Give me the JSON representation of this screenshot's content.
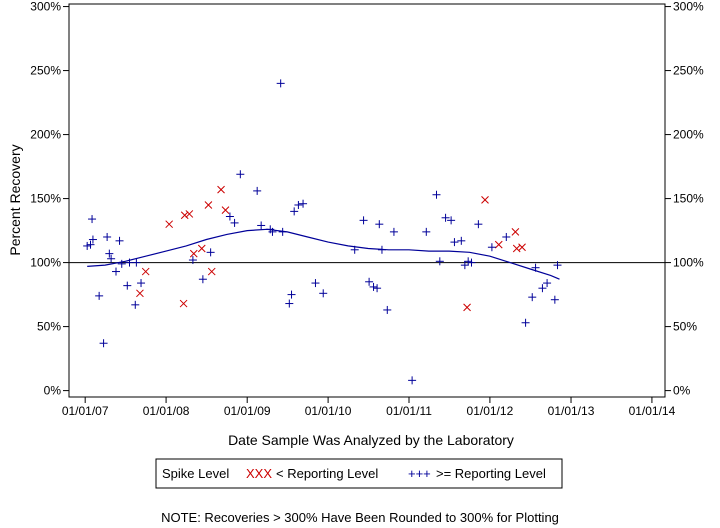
{
  "chart_data": {
    "type": "scatter",
    "xlabel": "Date Sample Was Analyzed by the Laboratory",
    "ylabel": "Percent Recovery",
    "x_ticks": [
      "01/01/07",
      "01/01/08",
      "01/01/09",
      "01/01/10",
      "01/01/11",
      "01/01/12",
      "01/01/13",
      "01/01/14"
    ],
    "x_range": [
      "2006-10-20",
      "2014-03-01"
    ],
    "y_ticks": [
      "0%",
      "50%",
      "100%",
      "150%",
      "200%",
      "250%",
      "300%"
    ],
    "ylim": [
      -5,
      302
    ],
    "reference_line_y": 100,
    "legend": {
      "title": "Spike Level",
      "entries": [
        {
          "symbol": "XXX",
          "label": "< Reporting Level",
          "color": "#cc0000"
        },
        {
          "symbol": "+++",
          "label": ">= Reporting Level",
          "color": "#000099"
        }
      ]
    },
    "note": "NOTE: Recoveries > 300% Have Been Rounded to 300% for Plotting",
    "series": [
      {
        "name": "< Reporting Level",
        "marker": "x",
        "color": "#cc0000",
        "points": [
          {
            "x": "2007-09-05",
            "y": 76
          },
          {
            "x": "2007-10-01",
            "y": 93
          },
          {
            "x": "2008-01-15",
            "y": 130
          },
          {
            "x": "2008-03-20",
            "y": 68
          },
          {
            "x": "2008-03-25",
            "y": 137
          },
          {
            "x": "2008-04-15",
            "y": 138
          },
          {
            "x": "2008-05-05",
            "y": 107
          },
          {
            "x": "2008-06-10",
            "y": 111
          },
          {
            "x": "2008-07-10",
            "y": 145
          },
          {
            "x": "2008-07-25",
            "y": 93
          },
          {
            "x": "2008-09-05",
            "y": 157
          },
          {
            "x": "2008-09-25",
            "y": 141
          },
          {
            "x": "2011-09-20",
            "y": 65
          },
          {
            "x": "2011-12-10",
            "y": 149
          },
          {
            "x": "2012-02-10",
            "y": 114
          },
          {
            "x": "2012-04-25",
            "y": 124
          },
          {
            "x": "2012-05-01",
            "y": 111
          },
          {
            "x": "2012-05-25",
            "y": 112
          }
        ]
      },
      {
        "name": ">= Reporting Level",
        "marker": "plus",
        "color": "#000099",
        "points": [
          {
            "x": "2007-01-10",
            "y": 113
          },
          {
            "x": "2007-01-25",
            "y": 114
          },
          {
            "x": "2007-02-01",
            "y": 134
          },
          {
            "x": "2007-02-05",
            "y": 118
          },
          {
            "x": "2007-03-05",
            "y": 74
          },
          {
            "x": "2007-03-25",
            "y": 37
          },
          {
            "x": "2007-04-10",
            "y": 120
          },
          {
            "x": "2007-04-20",
            "y": 107
          },
          {
            "x": "2007-04-28",
            "y": 103
          },
          {
            "x": "2007-05-20",
            "y": 93
          },
          {
            "x": "2007-06-05",
            "y": 117
          },
          {
            "x": "2007-06-15",
            "y": 99
          },
          {
            "x": "2007-07-10",
            "y": 82
          },
          {
            "x": "2007-07-20",
            "y": 100
          },
          {
            "x": "2007-08-15",
            "y": 67
          },
          {
            "x": "2007-08-20",
            "y": 100
          },
          {
            "x": "2007-09-10",
            "y": 84
          },
          {
            "x": "2008-05-01",
            "y": 102
          },
          {
            "x": "2008-06-15",
            "y": 87
          },
          {
            "x": "2008-07-20",
            "y": 108
          },
          {
            "x": "2008-10-15",
            "y": 136
          },
          {
            "x": "2008-11-05",
            "y": 131
          },
          {
            "x": "2008-12-01",
            "y": 169
          },
          {
            "x": "2009-02-15",
            "y": 156
          },
          {
            "x": "2009-03-05",
            "y": 129
          },
          {
            "x": "2009-04-15",
            "y": 126
          },
          {
            "x": "2009-04-25",
            "y": 124
          },
          {
            "x": "2009-06-01",
            "y": 240
          },
          {
            "x": "2009-06-10",
            "y": 124
          },
          {
            "x": "2009-07-10",
            "y": 68
          },
          {
            "x": "2009-07-20",
            "y": 75
          },
          {
            "x": "2009-08-01",
            "y": 140
          },
          {
            "x": "2009-08-20",
            "y": 145
          },
          {
            "x": "2009-09-10",
            "y": 146
          },
          {
            "x": "2009-11-05",
            "y": 84
          },
          {
            "x": "2009-12-10",
            "y": 76
          },
          {
            "x": "2010-05-01",
            "y": 110
          },
          {
            "x": "2010-06-10",
            "y": 133
          },
          {
            "x": "2010-07-05",
            "y": 85
          },
          {
            "x": "2010-07-25",
            "y": 81
          },
          {
            "x": "2010-08-10",
            "y": 80
          },
          {
            "x": "2010-08-20",
            "y": 130
          },
          {
            "x": "2010-09-01",
            "y": 110
          },
          {
            "x": "2010-09-25",
            "y": 63
          },
          {
            "x": "2010-10-25",
            "y": 124
          },
          {
            "x": "2011-01-15",
            "y": 8
          },
          {
            "x": "2011-03-20",
            "y": 124
          },
          {
            "x": "2011-05-05",
            "y": 153
          },
          {
            "x": "2011-05-20",
            "y": 101
          },
          {
            "x": "2011-06-15",
            "y": 135
          },
          {
            "x": "2011-07-10",
            "y": 133
          },
          {
            "x": "2011-07-25",
            "y": 116
          },
          {
            "x": "2011-08-25",
            "y": 117
          },
          {
            "x": "2011-09-10",
            "y": 98
          },
          {
            "x": "2011-09-25",
            "y": 101
          },
          {
            "x": "2011-10-10",
            "y": 100
          },
          {
            "x": "2011-11-10",
            "y": 130
          },
          {
            "x": "2012-01-10",
            "y": 112
          },
          {
            "x": "2012-03-15",
            "y": 120
          },
          {
            "x": "2012-06-10",
            "y": 53
          },
          {
            "x": "2012-07-10",
            "y": 73
          },
          {
            "x": "2012-07-25",
            "y": 96
          },
          {
            "x": "2012-08-25",
            "y": 80
          },
          {
            "x": "2012-09-15",
            "y": 84
          },
          {
            "x": "2012-10-20",
            "y": 71
          },
          {
            "x": "2012-11-01",
            "y": 98
          }
        ]
      },
      {
        "name": "trend",
        "marker": "line",
        "color": "#000099",
        "points": [
          {
            "x": "2007-01-10",
            "y": 97
          },
          {
            "x": "2007-04-01",
            "y": 98
          },
          {
            "x": "2007-07-01",
            "y": 101
          },
          {
            "x": "2007-10-01",
            "y": 105
          },
          {
            "x": "2008-01-01",
            "y": 109
          },
          {
            "x": "2008-04-01",
            "y": 113
          },
          {
            "x": "2008-07-01",
            "y": 118
          },
          {
            "x": "2008-10-01",
            "y": 122
          },
          {
            "x": "2009-01-01",
            "y": 125
          },
          {
            "x": "2009-04-01",
            "y": 126
          },
          {
            "x": "2009-07-01",
            "y": 124
          },
          {
            "x": "2009-10-01",
            "y": 120
          },
          {
            "x": "2010-01-01",
            "y": 116
          },
          {
            "x": "2010-04-01",
            "y": 113
          },
          {
            "x": "2010-07-01",
            "y": 111
          },
          {
            "x": "2010-10-01",
            "y": 110
          },
          {
            "x": "2011-01-01",
            "y": 110
          },
          {
            "x": "2011-04-01",
            "y": 109
          },
          {
            "x": "2011-07-01",
            "y": 109
          },
          {
            "x": "2011-10-01",
            "y": 108
          },
          {
            "x": "2012-01-01",
            "y": 105
          },
          {
            "x": "2012-04-01",
            "y": 100
          },
          {
            "x": "2012-07-01",
            "y": 95
          },
          {
            "x": "2012-10-01",
            "y": 90
          },
          {
            "x": "2012-11-10",
            "y": 87
          }
        ]
      }
    ]
  }
}
